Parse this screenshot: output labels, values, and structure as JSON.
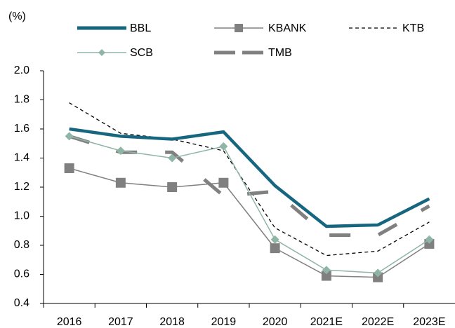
{
  "chart_data": {
    "type": "line",
    "y_label": "(%)",
    "categories": [
      "2016",
      "2017",
      "2018",
      "2019",
      "2020",
      "2021E",
      "2022E",
      "2023E"
    ],
    "ylim": [
      0.4,
      2.0
    ],
    "yticks": [
      {
        "value": 0.4,
        "label": "0.4"
      },
      {
        "value": 0.6,
        "label": "0.6"
      },
      {
        "value": 0.8,
        "label": "0.8"
      },
      {
        "value": 1.0,
        "label": "1.0"
      },
      {
        "value": 1.2,
        "label": "1.2"
      },
      {
        "value": 1.4,
        "label": "1.4"
      },
      {
        "value": 1.6,
        "label": "1.6"
      },
      {
        "value": 1.8,
        "label": "1.8"
      },
      {
        "value": 2.0,
        "label": "2.0"
      }
    ],
    "series": [
      {
        "name": "BBL",
        "color": "#17667f",
        "values": [
          1.6,
          1.55,
          1.53,
          1.58,
          1.21,
          0.93,
          0.94,
          1.12
        ]
      },
      {
        "name": "KBANK",
        "color": "#808080",
        "values": [
          1.33,
          1.23,
          1.2,
          1.23,
          0.78,
          0.59,
          0.58,
          0.81
        ]
      },
      {
        "name": "KTB",
        "color": "#000000",
        "values": [
          1.78,
          1.57,
          1.53,
          1.45,
          0.92,
          0.73,
          0.76,
          0.96
        ]
      },
      {
        "name": "SCB",
        "color": "#8fb5a6",
        "values": [
          1.55,
          1.45,
          1.4,
          1.48,
          0.84,
          0.63,
          0.61,
          0.84
        ]
      },
      {
        "name": "TMB",
        "color": "#808080",
        "values": [
          1.55,
          1.44,
          1.44,
          1.14,
          1.17,
          0.87,
          0.87,
          1.07
        ]
      }
    ]
  }
}
